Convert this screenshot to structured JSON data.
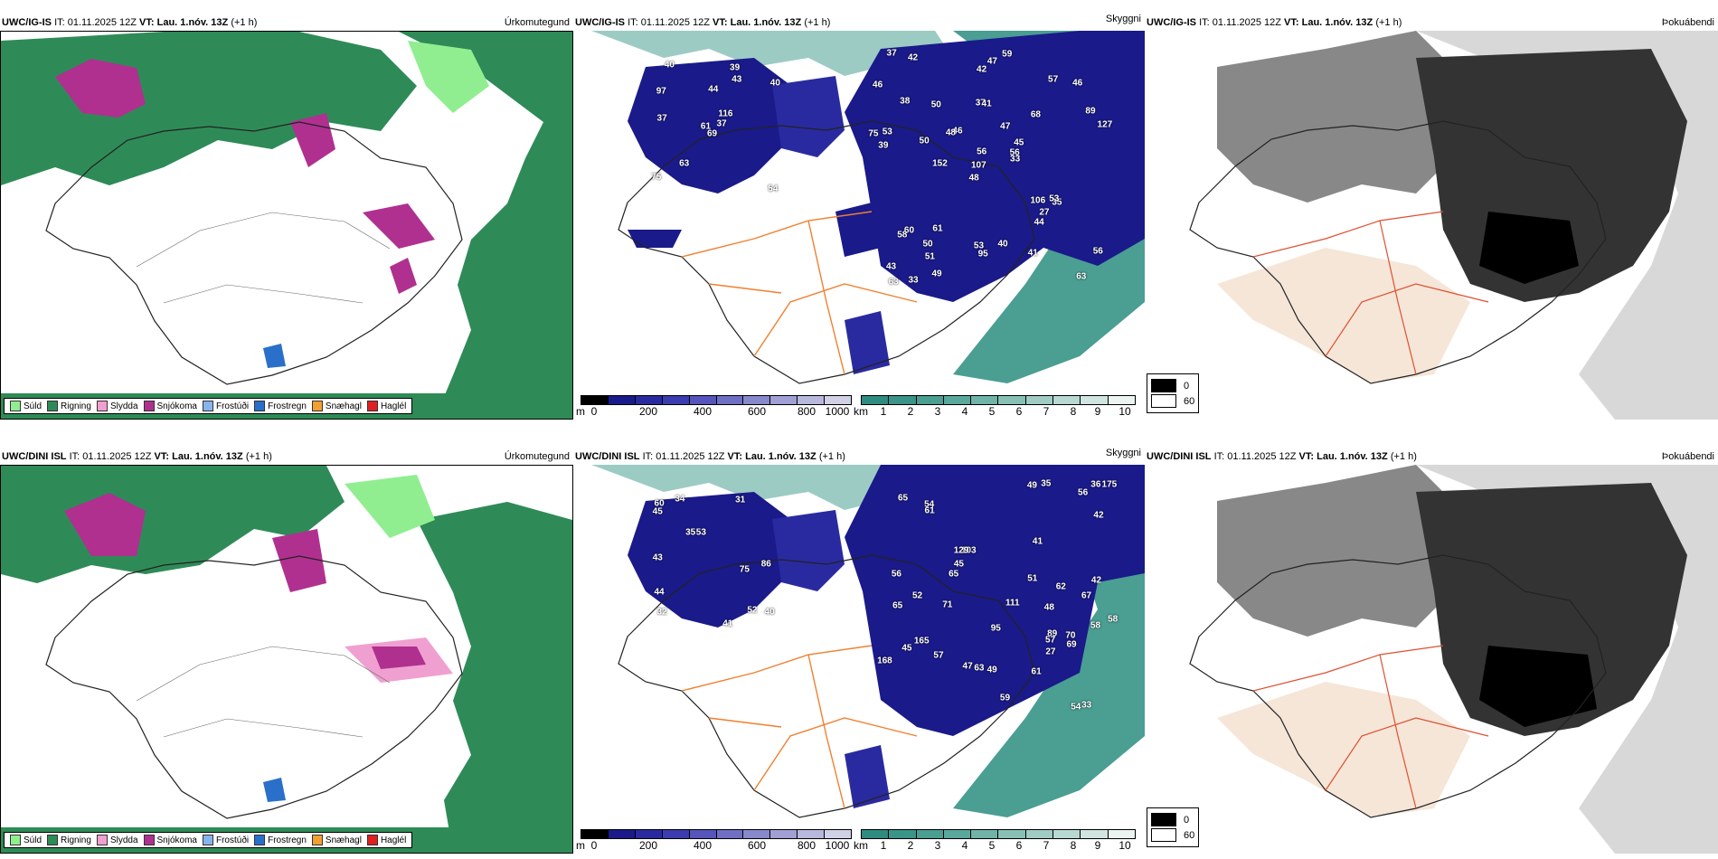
{
  "rows": [
    {
      "model": "UWC/IG-IS",
      "it_label": "IT: 01.11.2025 12Z",
      "vt_label": "VT: Lau. 1.nóv. 13Z",
      "lead": "(+1 h)",
      "labels": [
        "69",
        "97",
        "61",
        "75",
        "116",
        "63",
        "39",
        "44",
        "43",
        "37",
        "40",
        "54",
        "37",
        "40",
        "48",
        "68",
        "33",
        "37",
        "47",
        "60",
        "46",
        "43",
        "51",
        "41",
        "45",
        "35",
        "38",
        "42",
        "39",
        "106",
        "127",
        "107",
        "53",
        "56",
        "50",
        "57",
        "61",
        "63",
        "56",
        "53",
        "59",
        "48",
        "50",
        "44",
        "49",
        "75",
        "56",
        "63",
        "95",
        "33",
        "58",
        "89",
        "46",
        "27",
        "41",
        "50",
        "42",
        "37",
        "40",
        "46",
        "47",
        "152",
        "53"
      ]
    },
    {
      "model": "UWC/DINI ISL",
      "it_label": "IT: 01.11.2025 12Z",
      "vt_label": "VT: Lau. 1.nóv. 13Z",
      "lead": "(+1 h)",
      "labels": [
        "75",
        "86",
        "32",
        "34",
        "53",
        "52",
        "44",
        "31",
        "35",
        "41",
        "45",
        "43",
        "60",
        "40",
        "47",
        "42",
        "95",
        "111",
        "103",
        "165",
        "175",
        "56",
        "65",
        "58",
        "49",
        "54",
        "89",
        "65",
        "61",
        "62",
        "59",
        "61",
        "45",
        "71",
        "67",
        "69",
        "57",
        "52",
        "49",
        "45",
        "42",
        "35",
        "33",
        "63",
        "70",
        "57",
        "168",
        "65",
        "51",
        "56",
        "58",
        "129",
        "36",
        "48",
        "27",
        "54",
        "41"
      ]
    }
  ],
  "panel_titles": {
    "precip": "Úrkomutegund",
    "ceiling": "Skyggni",
    "cloud": "Þokuábendi"
  },
  "precip_legend": [
    {
      "label": "Súld",
      "color": "#90ee90"
    },
    {
      "label": "Rigning",
      "color": "#2e8b57"
    },
    {
      "label": "Slydda",
      "color": "#f0a0d0"
    },
    {
      "label": "Snjókoma",
      "color": "#b03090"
    },
    {
      "label": "Frostúði",
      "color": "#87b4ee"
    },
    {
      "label": "Frostregn",
      "color": "#2a6fc9"
    },
    {
      "label": "Snæhagl",
      "color": "#f0a030"
    },
    {
      "label": "Haglél",
      "color": "#e02020"
    }
  ],
  "ceiling_bar": {
    "unit": "m",
    "ticks": [
      "0",
      "200",
      "400",
      "600",
      "800",
      "1000"
    ],
    "colors": [
      "#000000",
      "#1a1a8a",
      "#2a2aa0",
      "#3c3cb0",
      "#5555bb",
      "#6f6fc4",
      "#8888cc",
      "#a0a0d4",
      "#b8b8dc",
      "#d0d0e6"
    ]
  },
  "visibility_bar": {
    "unit": "km",
    "ticks": [
      "1",
      "2",
      "3",
      "4",
      "5",
      "6",
      "7",
      "8",
      "9",
      "10"
    ],
    "colors": [
      "#2e8b80",
      "#3a9488",
      "#4a9e92",
      "#5aa89c",
      "#70b4a8",
      "#88c0b6",
      "#a0ccc4",
      "#b8d8d2",
      "#d0e4e0",
      "#ecf4f2"
    ]
  },
  "fog_legend": [
    {
      "label": "0",
      "color": "#000000"
    },
    {
      "label": "60",
      "color": "#ffffff"
    }
  ]
}
